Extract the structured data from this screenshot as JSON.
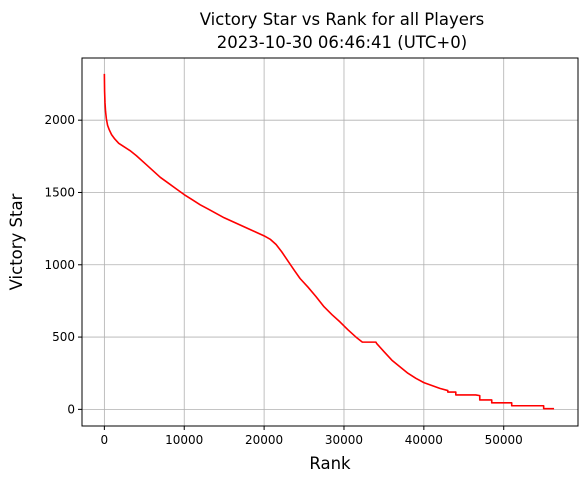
{
  "chart_data": {
    "type": "line",
    "title": "Victory Star vs Rank for all Players",
    "subtitle": "2023-10-30 06:46:41 (UTC+0)",
    "xlabel": "Rank",
    "ylabel": "Victory Star",
    "xlim": [
      -2800,
      59300
    ],
    "ylim": [
      -115,
      2430
    ],
    "xticks": [
      0,
      10000,
      20000,
      30000,
      40000,
      50000
    ],
    "xtick_labels": [
      "0",
      "10000",
      "20000",
      "30000",
      "40000",
      "50000"
    ],
    "yticks": [
      0,
      500,
      1000,
      1500,
      2000
    ],
    "ytick_labels": [
      "0",
      "500",
      "1000",
      "1500",
      "2000"
    ],
    "grid": true,
    "legend": "none",
    "colors": {
      "line": "#ff0000",
      "grid": "#b0b0b0"
    },
    "series": [
      {
        "x": [
          0,
          30,
          80,
          150,
          250,
          400,
          600,
          900,
          1300,
          1800,
          2500,
          3200,
          4000,
          5000,
          6000,
          7000,
          8000,
          9000,
          10000,
          11000,
          12000,
          13000,
          14000,
          15000,
          16000,
          17000,
          18000,
          19000,
          20000,
          20800,
          21500,
          22200,
          23000,
          23800,
          24500,
          25500,
          26500,
          27500,
          28500,
          29500,
          30500,
          31500,
          32300,
          32400,
          34000,
          34100,
          35000,
          36000,
          37000,
          38000,
          39000,
          40000,
          41000,
          42000,
          43000,
          43000,
          44000,
          44000,
          46500,
          47000,
          47000,
          48000,
          48500,
          48500,
          50500,
          51000,
          51000,
          55000,
          55000,
          56300
        ],
        "y": [
          2320,
          2200,
          2120,
          2060,
          2010,
          1965,
          1935,
          1900,
          1870,
          1840,
          1815,
          1790,
          1755,
          1705,
          1655,
          1605,
          1565,
          1525,
          1485,
          1450,
          1415,
          1385,
          1355,
          1325,
          1300,
          1275,
          1250,
          1225,
          1200,
          1175,
          1140,
          1090,
          1025,
          960,
          905,
          845,
          780,
          710,
          655,
          605,
          550,
          500,
          465,
          465,
          465,
          455,
          400,
          340,
          295,
          250,
          215,
          185,
          165,
          145,
          130,
          120,
          120,
          100,
          100,
          95,
          65,
          65,
          65,
          45,
          45,
          45,
          25,
          25,
          5,
          5
        ]
      }
    ]
  }
}
